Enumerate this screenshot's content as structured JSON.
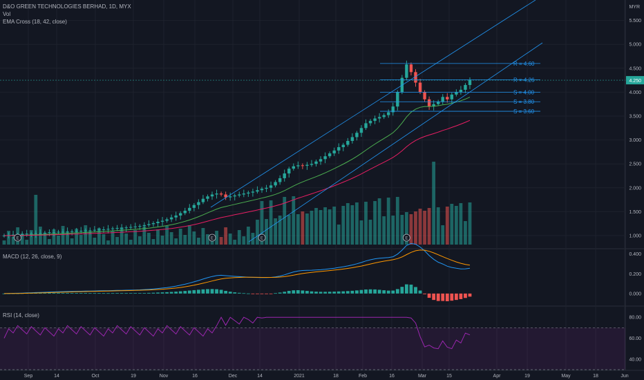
{
  "header": {
    "symbol_line": "D&O GREEN TECHNOLOGIES BERHAD, 1D, MYX",
    "vol_label": "Vol",
    "ema_label": "EMA Cross (18, 42, close)",
    "currency": "MYR",
    "last_price": "4.250"
  },
  "macd_label": "MACD (12, 26, close, 9)",
  "rsi_label": "RSI (14, close)",
  "colors": {
    "background": "#131722",
    "up": "#26a69a",
    "down": "#ef5350",
    "ema_fast": "#4caf50",
    "ema_slow": "#e91e63",
    "trendline": "#2196f3",
    "macd": "#2196f3",
    "signal": "#ff9800",
    "rsi": "#9c27b0",
    "text": "#b2b5be"
  },
  "chart_data": [
    {
      "type": "candlestick",
      "title": "D&O GREEN TECHNOLOGIES BERHAD, 1D, MYX",
      "x_ticks": [
        "Sep",
        "14",
        "Oct",
        "19",
        "Nov",
        "16",
        "Dec",
        "14",
        "2021",
        "18",
        "Feb",
        "16",
        "Mar",
        "15",
        "Apr",
        "19",
        "May",
        "18",
        "Jun"
      ],
      "y_ticks": [
        "5.500",
        "5.000",
        "4.500",
        "4.000",
        "3.500",
        "3.000",
        "2.500",
        "2.000",
        "1.500",
        "1.000"
      ],
      "ylim": [
        0.78,
        5.78
      ],
      "price_axis_label": "4.250",
      "series": [
        {
          "name": "Price",
          "open": [
            1.0,
            1.0,
            1.01,
            1.02,
            1.02,
            1.03,
            1.04,
            1.04,
            1.05,
            1.05,
            1.06,
            1.07,
            1.07,
            1.08,
            1.08,
            1.09,
            1.09,
            1.1,
            1.1,
            1.11,
            1.11,
            1.12,
            1.13,
            1.13,
            1.14,
            1.15,
            1.16,
            1.16,
            1.17,
            1.18,
            1.19,
            1.2,
            1.22,
            1.24,
            1.26,
            1.29,
            1.31,
            1.34,
            1.38,
            1.42,
            1.47,
            1.52,
            1.58,
            1.64,
            1.7,
            1.77,
            1.82,
            1.86,
            1.88,
            1.86,
            1.8,
            1.82,
            1.84,
            1.86,
            1.88,
            1.9,
            1.92,
            1.95,
            1.98,
            2.0,
            2.05,
            2.12,
            2.2,
            2.3,
            2.4,
            2.45,
            2.47,
            2.46,
            2.48,
            2.5,
            2.55,
            2.6,
            2.66,
            2.72,
            2.78,
            2.85,
            2.9,
            2.98,
            3.06,
            3.15,
            3.25,
            3.35,
            3.4,
            3.45,
            3.48,
            3.52,
            3.58,
            3.7,
            4.0,
            4.3,
            4.58,
            4.42,
            4.2,
            4.0,
            3.85,
            3.7,
            3.75,
            3.8,
            3.9,
            3.85,
            3.95,
            4.0,
            4.05,
            4.15
          ]
        },
        {
          "name": "High",
          "values": []
        },
        {
          "name": "Low",
          "values": []
        },
        {
          "name": "Close",
          "values": [
            1.0,
            1.01,
            1.02,
            1.02,
            1.03,
            1.04,
            1.04,
            1.05,
            1.05,
            1.06,
            1.07,
            1.07,
            1.08,
            1.08,
            1.09,
            1.09,
            1.1,
            1.1,
            1.11,
            1.11,
            1.12,
            1.13,
            1.13,
            1.14,
            1.15,
            1.16,
            1.16,
            1.17,
            1.18,
            1.19,
            1.2,
            1.22,
            1.24,
            1.26,
            1.29,
            1.31,
            1.34,
            1.38,
            1.42,
            1.47,
            1.52,
            1.58,
            1.64,
            1.7,
            1.77,
            1.82,
            1.86,
            1.88,
            1.86,
            1.8,
            1.82,
            1.84,
            1.86,
            1.88,
            1.9,
            1.92,
            1.95,
            1.98,
            2.0,
            2.05,
            2.12,
            2.2,
            2.3,
            2.4,
            2.45,
            2.47,
            2.46,
            2.48,
            2.5,
            2.55,
            2.6,
            2.66,
            2.72,
            2.78,
            2.85,
            2.9,
            2.98,
            3.06,
            3.15,
            3.25,
            3.35,
            3.4,
            3.45,
            3.48,
            3.52,
            3.58,
            3.7,
            4.0,
            4.3,
            4.58,
            4.42,
            4.2,
            4.0,
            3.85,
            3.7,
            3.75,
            3.8,
            3.9,
            3.85,
            3.95,
            4.0,
            4.05,
            4.15,
            4.25
          ]
        }
      ],
      "levels": [
        {
          "label": "R = 4.60",
          "value": 4.6
        },
        {
          "label": "R = 4.26",
          "value": 4.26
        },
        {
          "label": "S = 4.00",
          "value": 4.0
        },
        {
          "label": "S = 3.80",
          "value": 3.8
        },
        {
          "label": "S = 3.60",
          "value": 3.6
        }
      ]
    },
    {
      "type": "line",
      "title": "MACD (12, 26, close, 9)",
      "y_ticks": [
        "0.400",
        "0.200",
        "0.000"
      ],
      "ylim": [
        -0.12,
        0.44
      ]
    },
    {
      "type": "line",
      "title": "RSI (14, close)",
      "y_ticks": [
        "80.00",
        "60.00",
        "40.00"
      ],
      "ylim": [
        30,
        90
      ],
      "bands": [
        70,
        30
      ]
    }
  ]
}
